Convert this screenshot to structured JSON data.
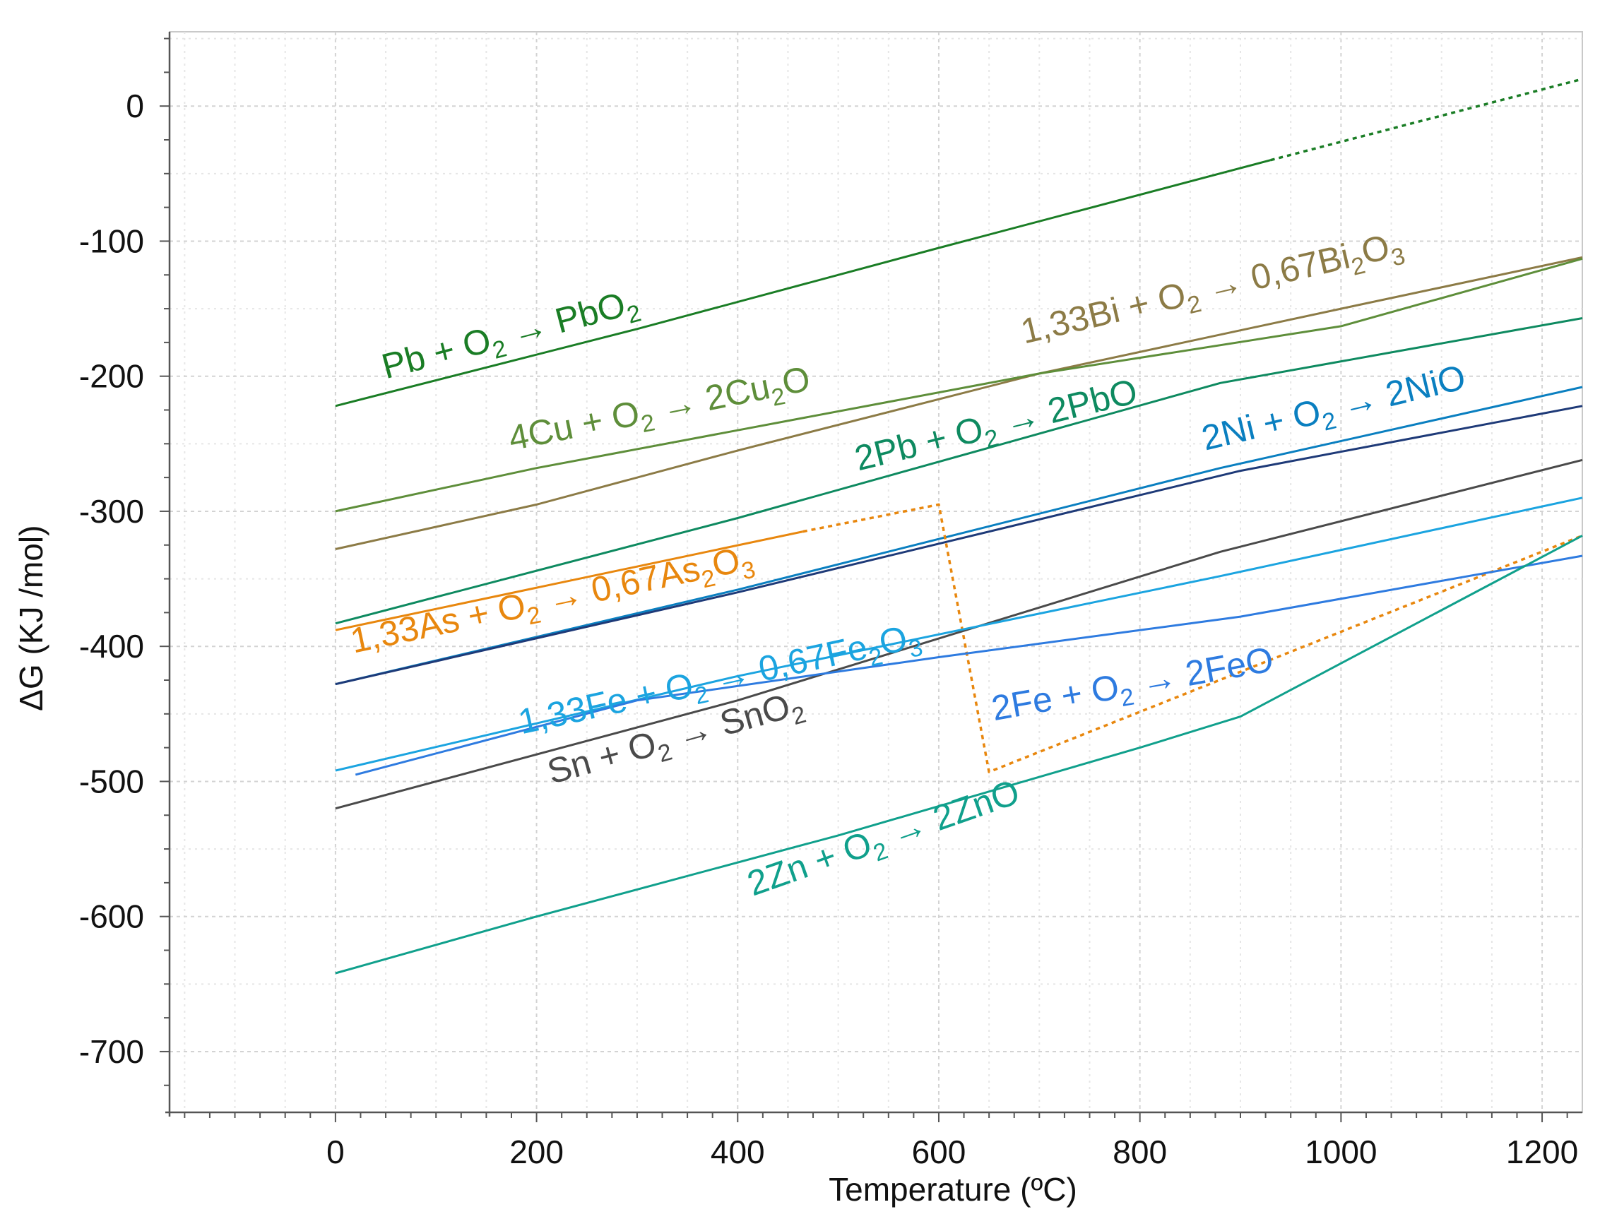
{
  "chart_data": {
    "type": "line",
    "title": "",
    "xlabel": "Temperature (ºC)",
    "ylabel": "ΔG (KJ /mol)",
    "xlim": [
      -165,
      1240
    ],
    "ylim": [
      -745,
      55
    ],
    "xticks": [
      0,
      200,
      400,
      600,
      800,
      1000,
      1200
    ],
    "yticks": [
      0,
      -100,
      -200,
      -300,
      -400,
      -500,
      -600,
      -700
    ],
    "grid": true,
    "series": [
      {
        "name": "Pb + O2 → PbO2",
        "label_parts": [
          [
            "Pb + O",
            false
          ],
          [
            "2",
            true
          ],
          [
            " → PbO",
            false
          ],
          [
            "2",
            true
          ]
        ],
        "color": "#1a7d25",
        "segments": [
          {
            "style": "solid",
            "x": [
              0,
              300,
              600,
              930
            ],
            "y": [
              -222,
              -165,
              -105,
              -40
            ]
          },
          {
            "style": "dotted",
            "x": [
              930,
              1240
            ],
            "y": [
              -40,
              20
            ]
          }
        ],
        "label_at": {
          "x": 50,
          "y": -202
        }
      },
      {
        "name": "1,33Bi + O2 → 0,67Bi2O3",
        "label_parts": [
          [
            "1,33Bi + O",
            false
          ],
          [
            "2",
            true
          ],
          [
            " → 0,67Bi",
            false
          ],
          [
            "2",
            true
          ],
          [
            "O",
            false
          ],
          [
            "3",
            true
          ]
        ],
        "color": "#8c7b46",
        "segments": [
          {
            "style": "solid",
            "x": [
              0,
              200,
              400,
              700,
              1000,
              1240
            ],
            "y": [
              -328,
              -295,
              -255,
              -198,
              -150,
              -112
            ]
          }
        ],
        "label_at": {
          "x": 685,
          "y": -176
        }
      },
      {
        "name": "4Cu + O2 → 2Cu2O",
        "label_parts": [
          [
            "4Cu + O",
            false
          ],
          [
            "2",
            true
          ],
          [
            " → 2Cu",
            false
          ],
          [
            "2",
            true
          ],
          [
            "O",
            false
          ]
        ],
        "color": "#5e8e3a",
        "segments": [
          {
            "style": "solid",
            "x": [
              0,
              200,
              400,
              700,
              1000,
              1240
            ],
            "y": [
              -300,
              -268,
              -240,
              -198,
              -163,
              -113
            ]
          }
        ],
        "label_at": {
          "x": 175,
          "y": -255
        }
      },
      {
        "name": "2Pb + O2 → 2PbO",
        "label_parts": [
          [
            "2Pb + O",
            false
          ],
          [
            "2",
            true
          ],
          [
            " → 2PbO",
            false
          ]
        ],
        "color": "#0e8a60",
        "segments": [
          {
            "style": "solid",
            "x": [
              0,
              400,
              880,
              1240
            ],
            "y": [
              -383,
              -305,
              -205,
              -157
            ]
          }
        ],
        "label_at": {
          "x": 520,
          "y": -270
        }
      },
      {
        "name": "2Ni + O2 → 2NiO",
        "label_parts": [
          [
            "2Ni + O",
            false
          ],
          [
            "2",
            true
          ],
          [
            " → 2NiO",
            false
          ]
        ],
        "color": "#0a7fc0",
        "segments": [
          {
            "style": "solid",
            "x": [
              0,
              400,
              880,
              1240
            ],
            "y": [
              -428,
              -358,
              -268,
              -208
            ]
          }
        ],
        "label_at": {
          "x": 865,
          "y": -255
        }
      },
      {
        "name": "2Ni + O2 → 2NiO (dark trace)",
        "label_parts": [],
        "color": "#1e3a78",
        "segments": [
          {
            "style": "solid",
            "x": [
              0,
              400,
              900,
              1240
            ],
            "y": [
              -428,
              -360,
              -270,
              -222
            ]
          }
        ]
      },
      {
        "name": "1,33As + O2 → 0,67As2O3",
        "label_parts": [
          [
            "1,33As + O",
            false
          ],
          [
            "2",
            true
          ],
          [
            " → 0,67As",
            false
          ],
          [
            "2",
            true
          ],
          [
            "O",
            false
          ],
          [
            "3",
            true
          ]
        ],
        "color": "#e8870e",
        "segments": [
          {
            "style": "solid",
            "x": [
              0,
              465
            ],
            "y": [
              -388,
              -315
            ]
          },
          {
            "style": "dotted",
            "x": [
              465,
              600,
              650,
              1240
            ],
            "y": [
              -315,
              -295,
              -493,
              -318
            ]
          }
        ],
        "label_at": {
          "x": 18,
          "y": -405
        }
      },
      {
        "name": "Sn + O2 → SnO2",
        "label_parts": [
          [
            "Sn + O",
            false
          ],
          [
            "2",
            true
          ],
          [
            " → SnO",
            false
          ],
          [
            "2",
            true
          ]
        ],
        "color": "#4a4a4a",
        "segments": [
          {
            "style": "solid",
            "x": [
              0,
              400,
              880,
              1240
            ],
            "y": [
              -520,
              -440,
              -330,
              -262
            ]
          }
        ],
        "label_at": {
          "x": 215,
          "y": -502
        }
      },
      {
        "name": "1,33Fe + O2 → 0,67Fe2O3",
        "label_parts": [
          [
            "1,33Fe + O",
            false
          ],
          [
            "2",
            true
          ],
          [
            " → 0,67Fe",
            false
          ],
          [
            "2",
            true
          ],
          [
            "O",
            false
          ],
          [
            "3",
            true
          ]
        ],
        "color": "#1ba4e0",
        "segments": [
          {
            "style": "solid",
            "x": [
              0,
              400,
              880,
              1240
            ],
            "y": [
              -492,
              -422,
              -348,
              -290
            ]
          }
        ],
        "label_at": {
          "x": 185,
          "y": -465
        }
      },
      {
        "name": "2Fe + O2 → 2FeO",
        "label_parts": [
          [
            "2Fe + O",
            false
          ],
          [
            "2",
            true
          ],
          [
            " → 2FeO",
            false
          ]
        ],
        "color": "#2e7be0",
        "segments": [
          {
            "style": "solid",
            "x": [
              20,
              300,
              600,
              900,
              1240
            ],
            "y": [
              -495,
              -440,
              -408,
              -378,
              -333
            ]
          }
        ],
        "label_at": {
          "x": 655,
          "y": -455
        }
      },
      {
        "name": "2Zn + O2 → 2ZnO",
        "label_parts": [
          [
            "2Zn + O",
            false
          ],
          [
            "2",
            true
          ],
          [
            " → 2ZnO",
            false
          ]
        ],
        "color": "#10a08c",
        "segments": [
          {
            "style": "solid",
            "x": [
              0,
              200,
              500,
              800,
              900,
              1240
            ],
            "y": [
              -642,
              -600,
              -540,
              -475,
              -452,
              -318
            ]
          }
        ],
        "label_at": {
          "x": 415,
          "y": -585
        }
      }
    ]
  }
}
